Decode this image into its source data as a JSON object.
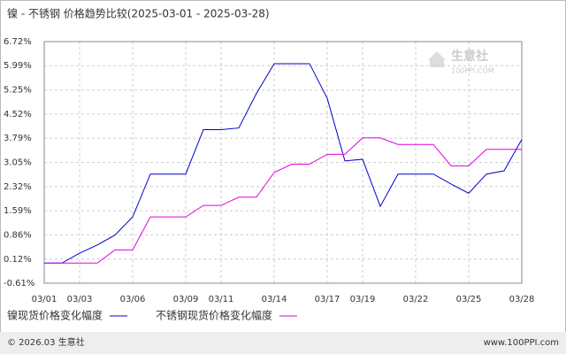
{
  "chart_data": {
    "type": "line",
    "title": "镍 - 不锈钢 价格趋势比较(2025-03-01 - 2025-03-28)",
    "categories": [
      "03/01",
      null,
      "03/03",
      null,
      null,
      "03/06",
      null,
      null,
      "03/09",
      null,
      "03/11",
      null,
      null,
      "03/14",
      null,
      null,
      "03/17",
      null,
      "03/19",
      null,
      null,
      "03/22",
      null,
      null,
      "03/25",
      null,
      null,
      "03/28"
    ],
    "series": [
      {
        "name": "镍现货价格变化幅度",
        "color": "#0000cc",
        "values": [
          0,
          0,
          0.3,
          0.55,
          0.85,
          1.4,
          2.7,
          2.7,
          2.7,
          4.05,
          4.05,
          4.1,
          5.15,
          6.05,
          6.05,
          6.05,
          5.0,
          3.1,
          3.15,
          1.72,
          2.7,
          2.7,
          2.7,
          2.4,
          2.12,
          2.7,
          2.8,
          3.75
        ]
      },
      {
        "name": "不锈钢现货价格变化幅度",
        "color": "#e000e0",
        "values": [
          0,
          0,
          0,
          0,
          0.4,
          0.4,
          1.4,
          1.4,
          1.4,
          1.75,
          1.75,
          2.0,
          2.0,
          2.75,
          3.0,
          3.0,
          3.3,
          3.3,
          3.8,
          3.8,
          3.6,
          3.6,
          3.6,
          2.95,
          2.95,
          3.45,
          3.45,
          3.45
        ]
      }
    ],
    "ylim": [
      -0.61,
      6.72
    ],
    "yticks": [
      {
        "value": -0.61,
        "label": "-0.61%"
      },
      {
        "value": 0.12,
        "label": "0.12%"
      },
      {
        "value": 0.86,
        "label": "0.86%"
      },
      {
        "value": 1.59,
        "label": "1.59%"
      },
      {
        "value": 2.32,
        "label": "2.32%"
      },
      {
        "value": 3.05,
        "label": "3.05%"
      },
      {
        "value": 3.79,
        "label": "3.79%"
      },
      {
        "value": 4.52,
        "label": "4.52%"
      },
      {
        "value": 5.25,
        "label": "5.25%"
      },
      {
        "value": 5.99,
        "label": "5.99%"
      },
      {
        "value": 6.72,
        "label": "6.72%"
      }
    ],
    "grid": true,
    "watermark": [
      "生意社",
      "100PPI.COM"
    ],
    "footer": [
      "© 2026.03 生意社",
      "www.100PPI.com"
    ]
  }
}
